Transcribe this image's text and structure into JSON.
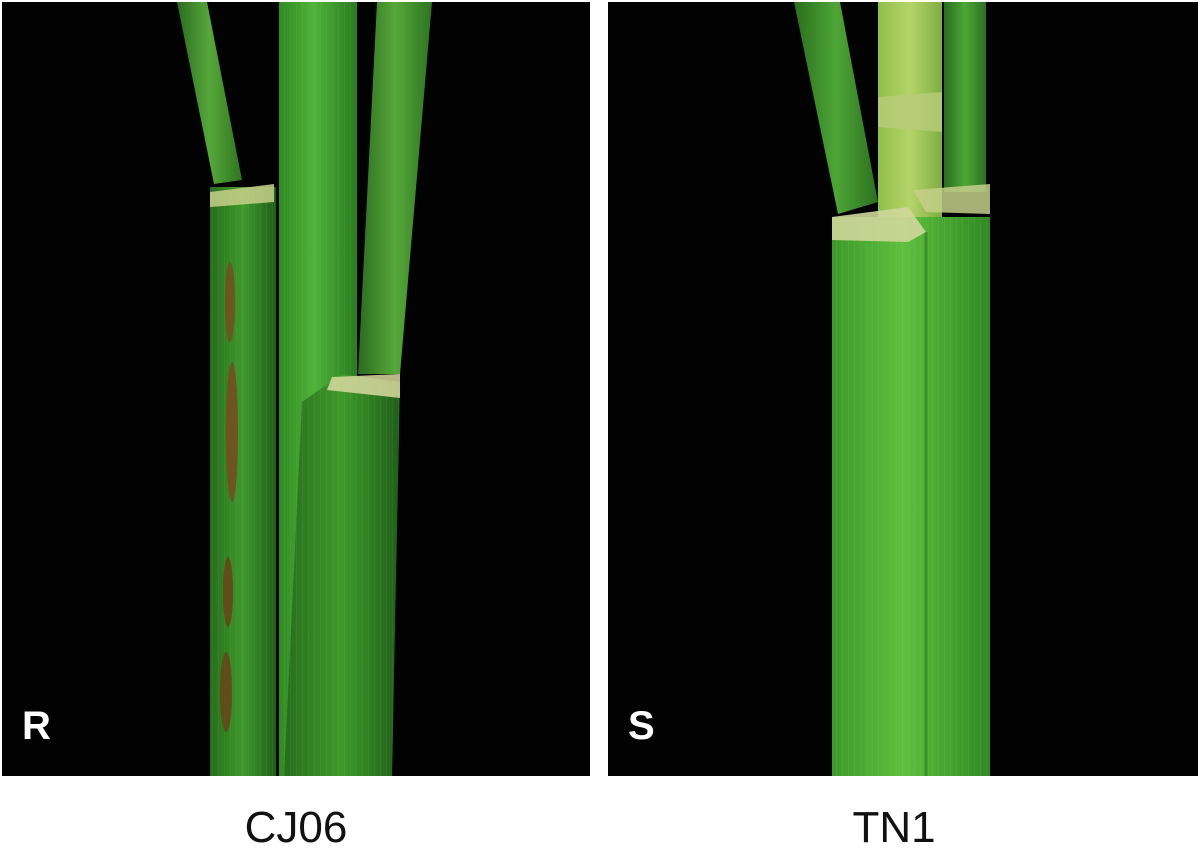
{
  "panels": [
    {
      "letter": "R",
      "caption": "CJ06"
    },
    {
      "letter": "S",
      "caption": "TN1"
    }
  ],
  "colors": {
    "background": "#020202",
    "stem_green": "#3f9a2c",
    "lesion_brown": "#7a4a1c",
    "text": "#111111"
  }
}
